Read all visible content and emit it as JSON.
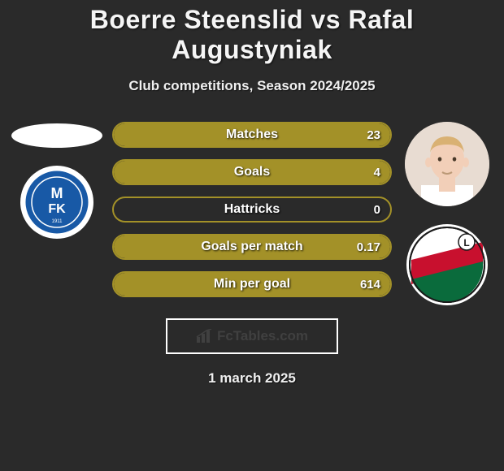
{
  "title": "Boerre Steenslid vs Rafal Augustyniak",
  "subtitle": "Club competitions, Season 2024/2025",
  "date": "1 march 2025",
  "logo_text": "FcTables.com",
  "colors": {
    "background": "#2a2a2a",
    "bar_border": "#a39128",
    "bar_fill": "#a39128",
    "text": "#ffffff"
  },
  "left": {
    "player_placeholder": "oval",
    "club": {
      "name": "Molde FK",
      "bg": "#1859a6",
      "accent": "#ffffff"
    }
  },
  "right": {
    "player": {
      "skin": "#f2cfb8",
      "hair": "#d9b173",
      "shirt": "#ffffff"
    },
    "club": {
      "name": "Legia Warsaw",
      "top": "#ffffff",
      "mid": "#c8102e",
      "bot": "#0a6b3c"
    }
  },
  "bars": [
    {
      "label": "Matches",
      "left": "",
      "right": "23",
      "fill_side": "right",
      "fill_pct": 100
    },
    {
      "label": "Goals",
      "left": "",
      "right": "4",
      "fill_side": "right",
      "fill_pct": 100
    },
    {
      "label": "Hattricks",
      "left": "",
      "right": "0",
      "fill_side": "none",
      "fill_pct": 0
    },
    {
      "label": "Goals per match",
      "left": "",
      "right": "0.17",
      "fill_side": "right",
      "fill_pct": 100
    },
    {
      "label": "Min per goal",
      "left": "",
      "right": "614",
      "fill_side": "right",
      "fill_pct": 100
    }
  ]
}
